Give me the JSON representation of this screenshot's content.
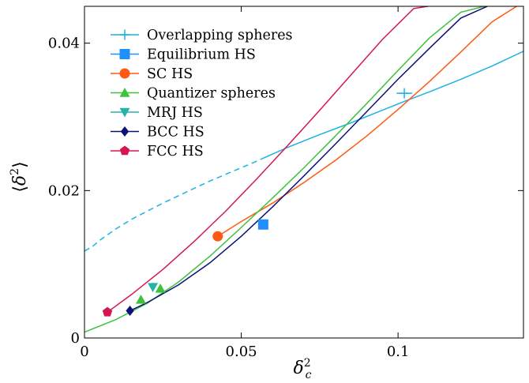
{
  "chart_data": {
    "type": "line",
    "xlabel": "δ_c²",
    "ylabel": "⟨δ²⟩",
    "xlim": [
      0,
      0.14
    ],
    "ylim": [
      0,
      0.045
    ],
    "x_ticks": [
      {
        "value": 0,
        "label": "0"
      },
      {
        "value": 0.05,
        "label": "0.05"
      },
      {
        "value": 0.1,
        "label": "0.1"
      }
    ],
    "y_ticks": [
      {
        "value": 0,
        "label": "0"
      },
      {
        "value": 0.02,
        "label": "0.02"
      },
      {
        "value": 0.04,
        "label": "0.04"
      }
    ],
    "legend_position": "top-left",
    "series": [
      {
        "name": "Overlapping spheres",
        "color": "#1bb3e6",
        "marker": "plus",
        "dashed_x": [
          0.0,
          0.0025,
          0.005,
          0.01,
          0.015,
          0.02,
          0.025,
          0.03,
          0.035,
          0.04,
          0.045,
          0.05,
          0.055,
          0.0565
        ],
        "dashed_y": [
          0.0118,
          0.0124,
          0.0133,
          0.0148,
          0.0161,
          0.0172,
          0.0183,
          0.0193,
          0.0203,
          0.0213,
          0.0222,
          0.0231,
          0.024,
          0.0243
        ],
        "solid_x": [
          0.0565,
          0.065,
          0.075,
          0.085,
          0.095,
          0.102,
          0.11,
          0.12,
          0.13,
          0.14
        ],
        "solid_y": [
          0.0243,
          0.0259,
          0.0276,
          0.0292,
          0.0309,
          0.0321,
          0.0334,
          0.0351,
          0.0369,
          0.0389
        ],
        "points": [
          {
            "x": 0.102,
            "y": 0.0332,
            "xerr": 0.0025
          }
        ]
      },
      {
        "name": "Equilibrium HS",
        "color": "#1f8fff",
        "marker": "square",
        "points": [
          {
            "x": 0.057,
            "y": 0.0154
          }
        ]
      },
      {
        "name": "SC HS",
        "color": "#ff5a14",
        "marker": "circle",
        "x": [
          0.0425,
          0.05,
          0.06,
          0.07,
          0.08,
          0.09,
          0.1,
          0.11,
          0.12,
          0.13,
          0.1378
        ],
        "y": [
          0.0138,
          0.0158,
          0.0183,
          0.0211,
          0.0241,
          0.0274,
          0.031,
          0.0348,
          0.0388,
          0.0429,
          0.045
        ],
        "points": [
          {
            "x": 0.0425,
            "y": 0.0138
          }
        ]
      },
      {
        "name": "Quantizer spheres",
        "color": "#3ec23e",
        "marker": "triangle-up",
        "x": [
          0.0,
          0.01,
          0.02,
          0.03,
          0.04,
          0.05,
          0.06,
          0.07,
          0.08,
          0.09,
          0.1,
          0.11,
          0.12,
          0.1275
        ],
        "y": [
          0.0008,
          0.0025,
          0.0047,
          0.0076,
          0.0111,
          0.015,
          0.019,
          0.0231,
          0.0274,
          0.0318,
          0.0363,
          0.0407,
          0.0442,
          0.045
        ],
        "points": [
          {
            "x": 0.018,
            "y": 0.0052
          },
          {
            "x": 0.0242,
            "y": 0.0067
          }
        ]
      },
      {
        "name": "MRJ HS",
        "color": "#25b3a8",
        "marker": "triangle-down",
        "points": [
          {
            "x": 0.0218,
            "y": 0.0069
          }
        ]
      },
      {
        "name": "BCC HS",
        "color": "#0a1278",
        "marker": "diamond",
        "x": [
          0.0145,
          0.02,
          0.03,
          0.04,
          0.05,
          0.06,
          0.07,
          0.08,
          0.09,
          0.1,
          0.11,
          0.12,
          0.1285
        ],
        "y": [
          0.0037,
          0.0048,
          0.0072,
          0.0102,
          0.0138,
          0.0178,
          0.022,
          0.0263,
          0.0307,
          0.0351,
          0.0393,
          0.0434,
          0.045
        ],
        "points": [
          {
            "x": 0.0145,
            "y": 0.0037
          }
        ]
      },
      {
        "name": "FCC HS",
        "color": "#d6164f",
        "marker": "pentagon",
        "x": [
          0.0073,
          0.015,
          0.025,
          0.035,
          0.045,
          0.055,
          0.065,
          0.075,
          0.085,
          0.095,
          0.105,
          0.1095
        ],
        "y": [
          0.0035,
          0.0059,
          0.0093,
          0.0131,
          0.0172,
          0.0216,
          0.0262,
          0.0309,
          0.0357,
          0.0405,
          0.0447,
          0.045
        ],
        "points": [
          {
            "x": 0.0073,
            "y": 0.0035
          }
        ]
      }
    ]
  }
}
